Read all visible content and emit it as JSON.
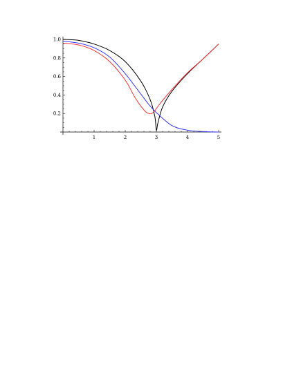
{
  "chart_data": {
    "type": "line",
    "title": "",
    "xlabel": "",
    "ylabel": "",
    "xlim": [
      0,
      5
    ],
    "ylim": [
      0,
      1.0
    ],
    "grid": false,
    "legend": "none",
    "x_ticks": [
      {
        "value": 1,
        "label": "1"
      },
      {
        "value": 2,
        "label": "2"
      },
      {
        "value": 3,
        "label": "3"
      },
      {
        "value": 4,
        "label": "4"
      },
      {
        "value": 5,
        "label": "5"
      }
    ],
    "y_ticks": [
      {
        "value": 0.2,
        "label": "0.2"
      },
      {
        "value": 0.4,
        "label": "0.4"
      },
      {
        "value": 0.6,
        "label": "0.6"
      },
      {
        "value": 0.8,
        "label": "0.8"
      },
      {
        "value": 1.0,
        "label": "1.0"
      }
    ],
    "series": [
      {
        "color": "#000000",
        "x": [
          0,
          0.5,
          1,
          1.5,
          2,
          2.5,
          2.8,
          2.95,
          3,
          3.05,
          3.2,
          3.5,
          4,
          4.5,
          5
        ],
        "y": [
          1.0,
          0.99,
          0.95,
          0.88,
          0.76,
          0.55,
          0.35,
          0.17,
          0.02,
          0.1,
          0.27,
          0.44,
          0.63,
          0.79,
          0.95
        ]
      },
      {
        "color": "#3333ff",
        "x": [
          0,
          0.5,
          1,
          1.5,
          2,
          2.5,
          2.8,
          3,
          3.5,
          4,
          4.5,
          5
        ],
        "y": [
          0.98,
          0.96,
          0.91,
          0.81,
          0.63,
          0.41,
          0.28,
          0.21,
          0.07,
          0.02,
          0.005,
          0.0
        ]
      },
      {
        "color": "#ff3333",
        "x": [
          0,
          0.5,
          1,
          1.5,
          2,
          2.3,
          2.5,
          2.65,
          2.75,
          2.85,
          2.95,
          3.1,
          3.5,
          4,
          4.5,
          5
        ],
        "y": [
          0.96,
          0.94,
          0.88,
          0.76,
          0.56,
          0.38,
          0.28,
          0.22,
          0.2,
          0.2,
          0.23,
          0.3,
          0.46,
          0.64,
          0.79,
          0.95
        ]
      }
    ]
  }
}
